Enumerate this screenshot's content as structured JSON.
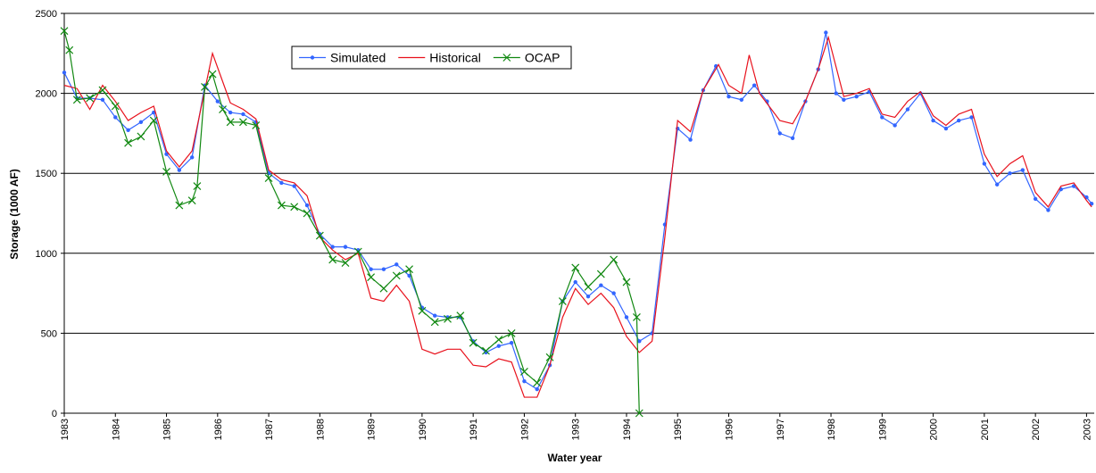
{
  "chart_data": {
    "type": "line",
    "x_label": "Water year",
    "y_label": "Storage (1000 AF)",
    "xlim": [
      1983,
      2003.15
    ],
    "ylim": [
      0,
      2500
    ],
    "xticks": [
      1983,
      1984,
      1985,
      1986,
      1987,
      1988,
      1989,
      1990,
      1991,
      1992,
      1993,
      1994,
      1995,
      1996,
      1997,
      1998,
      1999,
      2000,
      2001,
      2002,
      2003
    ],
    "yticks": [
      0,
      500,
      1000,
      1500,
      2000,
      2500
    ],
    "grid": true,
    "legend": "top",
    "series": [
      {
        "name": "Simulated",
        "color": "#3366ff",
        "marker": "dot",
        "x": [
          1983,
          1983.25,
          1983.5,
          1983.75,
          1984,
          1984.25,
          1984.5,
          1984.75,
          1985,
          1985.25,
          1985.5,
          1985.75,
          1986,
          1986.25,
          1986.5,
          1986.75,
          1987,
          1987.25,
          1987.5,
          1987.75,
          1988,
          1988.25,
          1988.5,
          1988.75,
          1989,
          1989.25,
          1989.5,
          1989.75,
          1990,
          1990.25,
          1990.5,
          1990.75,
          1991,
          1991.25,
          1991.5,
          1991.75,
          1992,
          1992.25,
          1992.5,
          1992.75,
          1993,
          1993.25,
          1993.5,
          1993.75,
          1994,
          1994.25,
          1994.5,
          1994.75,
          1995,
          1995.25,
          1995.5,
          1995.75,
          1996,
          1996.25,
          1996.5,
          1996.75,
          1997,
          1997.25,
          1997.5,
          1997.75,
          1997.9,
          1998.1,
          1998.25,
          1998.5,
          1998.75,
          1999,
          1999.25,
          1999.5,
          1999.75,
          2000,
          2000.25,
          2000.5,
          2000.75,
          2001,
          2001.25,
          2001.5,
          2001.75,
          2002,
          2002.25,
          2002.5,
          2002.75,
          2003,
          2003.1
        ],
        "values": [
          2130,
          1970,
          1970,
          1960,
          1850,
          1770,
          1820,
          1880,
          1620,
          1520,
          1600,
          2050,
          1950,
          1880,
          1870,
          1820,
          1500,
          1440,
          1420,
          1300,
          1120,
          1040,
          1040,
          1020,
          900,
          900,
          930,
          860,
          660,
          610,
          600,
          600,
          450,
          380,
          420,
          440,
          200,
          150,
          300,
          700,
          820,
          730,
          800,
          750,
          600,
          450,
          500,
          1180,
          1780,
          1710,
          2020,
          2170,
          1980,
          1960,
          2050,
          1950,
          1750,
          1720,
          1950,
          2150,
          2380,
          2000,
          1960,
          1980,
          2010,
          1850,
          1800,
          1900,
          2000,
          1830,
          1780,
          1830,
          1850,
          1560,
          1430,
          1500,
          1520,
          1340,
          1270,
          1400,
          1420,
          1350,
          1310
        ]
      },
      {
        "name": "Historical",
        "color": "#e8111c",
        "marker": "none",
        "x": [
          1983,
          1983.25,
          1983.5,
          1983.75,
          1984,
          1984.25,
          1984.5,
          1984.75,
          1985,
          1985.25,
          1985.5,
          1985.9,
          1986.25,
          1986.5,
          1986.75,
          1987,
          1987.25,
          1987.5,
          1987.75,
          1988,
          1988.25,
          1988.5,
          1988.75,
          1989,
          1989.25,
          1989.5,
          1989.75,
          1990,
          1990.25,
          1990.5,
          1990.75,
          1991,
          1991.25,
          1991.5,
          1991.75,
          1992,
          1992.25,
          1992.5,
          1992.75,
          1993,
          1993.25,
          1993.5,
          1993.75,
          1994,
          1994.25,
          1994.5,
          1994.75,
          1995,
          1995.25,
          1995.5,
          1995.8,
          1996,
          1996.25,
          1996.4,
          1996.6,
          1997,
          1997.25,
          1997.5,
          1997.75,
          1997.95,
          1998.25,
          1998.5,
          1998.75,
          1999,
          1999.25,
          1999.5,
          1999.75,
          2000,
          2000.25,
          2000.5,
          2000.75,
          2001,
          2001.25,
          2001.5,
          2001.75,
          2002,
          2002.25,
          2002.5,
          2002.75,
          2003,
          2003.1
        ],
        "values": [
          2050,
          2030,
          1900,
          2050,
          1950,
          1830,
          1880,
          1920,
          1640,
          1540,
          1640,
          2250,
          1940,
          1900,
          1840,
          1520,
          1460,
          1440,
          1360,
          1100,
          1020,
          960,
          1000,
          720,
          700,
          800,
          700,
          400,
          370,
          400,
          400,
          300,
          290,
          340,
          320,
          100,
          100,
          300,
          600,
          780,
          680,
          750,
          660,
          480,
          380,
          450,
          1100,
          1830,
          1760,
          2020,
          2180,
          2050,
          2000,
          2240,
          2000,
          1830,
          1810,
          1950,
          2150,
          2350,
          1980,
          2000,
          2030,
          1870,
          1850,
          1950,
          2010,
          1860,
          1800,
          1870,
          1900,
          1620,
          1480,
          1560,
          1610,
          1380,
          1290,
          1420,
          1440,
          1330,
          1290
        ]
      },
      {
        "name": "OCAP",
        "color": "#118811",
        "marker": "x",
        "x": [
          1983,
          1983.1,
          1983.25,
          1983.5,
          1983.75,
          1984,
          1984.25,
          1984.5,
          1984.75,
          1985,
          1985.25,
          1985.5,
          1985.6,
          1985.75,
          1985.9,
          1986.1,
          1986.25,
          1986.5,
          1986.75,
          1987,
          1987.25,
          1987.5,
          1987.75,
          1988,
          1988.25,
          1988.5,
          1988.75,
          1989,
          1989.25,
          1989.5,
          1989.75,
          1990,
          1990.25,
          1990.5,
          1990.75,
          1991,
          1991.25,
          1991.5,
          1991.75,
          1992,
          1992.25,
          1992.5,
          1992.75,
          1993,
          1993.25,
          1993.5,
          1993.75,
          1994,
          1994.2,
          1994.25
        ],
        "values": [
          2390,
          2270,
          1960,
          1970,
          2020,
          1920,
          1690,
          1730,
          1830,
          1510,
          1300,
          1330,
          1420,
          2040,
          2120,
          1900,
          1820,
          1820,
          1800,
          1470,
          1300,
          1290,
          1250,
          1110,
          960,
          940,
          1010,
          850,
          780,
          860,
          900,
          640,
          570,
          590,
          610,
          440,
          390,
          460,
          500,
          260,
          190,
          350,
          700,
          910,
          790,
          870,
          960,
          820,
          600,
          0
        ]
      }
    ]
  }
}
